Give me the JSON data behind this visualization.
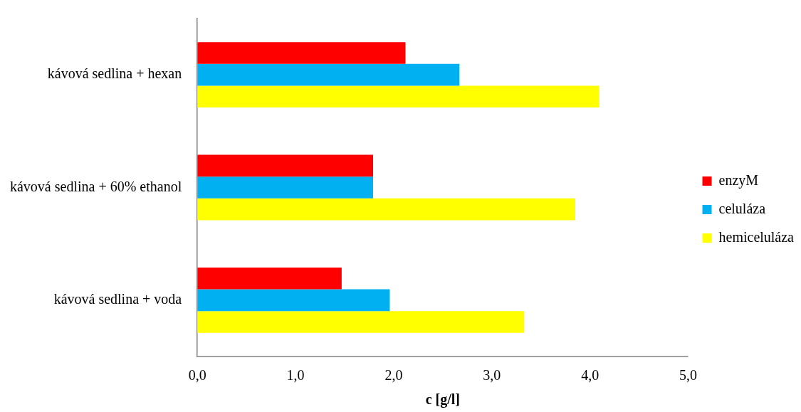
{
  "chart_data": {
    "type": "bar",
    "orientation": "horizontal",
    "xlabel": "c [g/l]",
    "categories": [
      "kávová sedlina + hexan",
      "kávová sedlina + 60% ethanol",
      "kávová sedlina + voda"
    ],
    "series": [
      {
        "name": "enzyM",
        "color": "#ff0000",
        "values": [
          2.12,
          1.79,
          1.47
        ]
      },
      {
        "name": "celuláza",
        "color": "#00b0f0",
        "values": [
          2.67,
          1.79,
          1.96
        ]
      },
      {
        "name": "hemiceluláza",
        "color": "#ffff00",
        "values": [
          4.09,
          3.85,
          3.33
        ]
      }
    ],
    "xlim": [
      0,
      5
    ],
    "xticks": [
      {
        "value": 0,
        "label": "0,0"
      },
      {
        "value": 1,
        "label": "1,0"
      },
      {
        "value": 2,
        "label": "2,0"
      },
      {
        "value": 3,
        "label": "3,0"
      },
      {
        "value": 4,
        "label": "4,0"
      },
      {
        "value": 5,
        "label": "5,0"
      }
    ],
    "grid": false,
    "legend": "right"
  }
}
